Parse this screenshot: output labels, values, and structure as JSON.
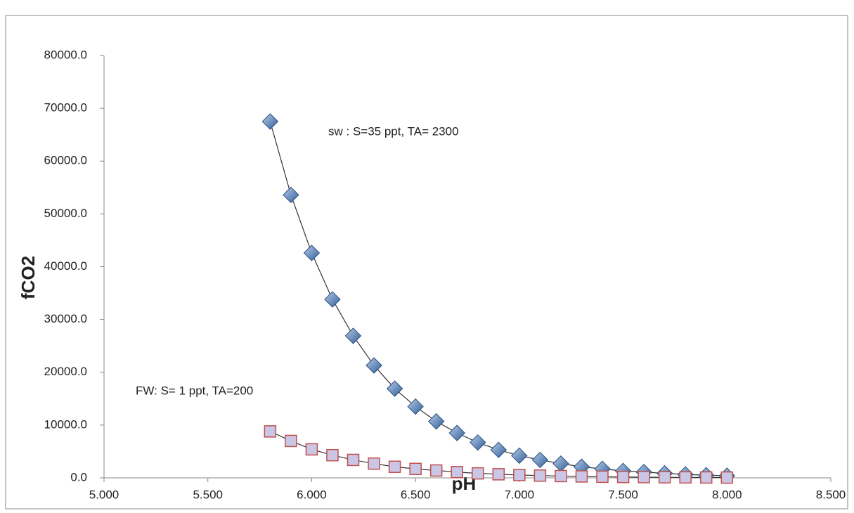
{
  "chart_data": {
    "type": "scatter",
    "x_label": "pH",
    "y_label": "fCO2",
    "annotations": [
      "sw :   S=35 ppt, TA= 2300",
      "FW: S= 1 ppt, TA=200"
    ],
    "xlim": [
      5,
      8.5
    ],
    "xticks": [
      {
        "value": 5,
        "label": "5.000"
      },
      {
        "value": 5.5,
        "label": "5.500"
      },
      {
        "value": 6,
        "label": "6.000"
      },
      {
        "value": 6.5,
        "label": "6.500"
      },
      {
        "value": 7,
        "label": "7.000"
      },
      {
        "value": 7.5,
        "label": "7.500"
      },
      {
        "value": 8,
        "label": "8.000"
      },
      {
        "value": 8.5,
        "label": "8.500"
      }
    ],
    "ylim": [
      0,
      80000
    ],
    "yticks": [
      {
        "value": 0,
        "label": "0.0"
      },
      {
        "value": 10000,
        "label": "10000.0"
      },
      {
        "value": 20000,
        "label": "20000.0"
      },
      {
        "value": 30000,
        "label": "30000.0"
      },
      {
        "value": 40000,
        "label": "40000.0"
      },
      {
        "value": 50000,
        "label": "50000.0"
      },
      {
        "value": 60000,
        "label": "60000.0"
      },
      {
        "value": 70000,
        "label": "70000.0"
      },
      {
        "value": 80000,
        "label": "80000.0"
      }
    ],
    "grid": false,
    "series": [
      {
        "color": "#4f81bd",
        "marker": "diamond",
        "x": [
          5.8,
          5.9,
          6.0,
          6.1,
          6.2,
          6.3,
          6.4,
          6.5,
          6.6,
          6.7,
          6.8,
          6.9,
          7.0,
          7.1,
          7.2,
          7.3,
          7.4,
          7.5,
          7.6,
          7.7,
          7.8,
          7.9,
          8.0
        ],
        "values": [
          67500,
          53600,
          42600,
          33800,
          26900,
          21300,
          16900,
          13500,
          10700,
          8500,
          6700,
          5300,
          4200,
          3400,
          2700,
          2100,
          1700,
          1300,
          1100,
          850,
          650,
          500,
          400
        ]
      },
      {
        "color": "#c0504d",
        "marker": "square",
        "x": [
          5.8,
          5.9,
          6.0,
          6.1,
          6.2,
          6.3,
          6.4,
          6.5,
          6.6,
          6.7,
          6.8,
          6.9,
          7.0,
          7.1,
          7.2,
          7.3,
          7.4,
          7.5,
          7.6,
          7.7,
          7.8,
          7.9,
          8.0
        ],
        "values": [
          8800,
          7000,
          5400,
          4300,
          3400,
          2700,
          2100,
          1700,
          1400,
          1100,
          850,
          680,
          540,
          430,
          340,
          270,
          210,
          170,
          135,
          110,
          85,
          70,
          55
        ]
      }
    ]
  }
}
